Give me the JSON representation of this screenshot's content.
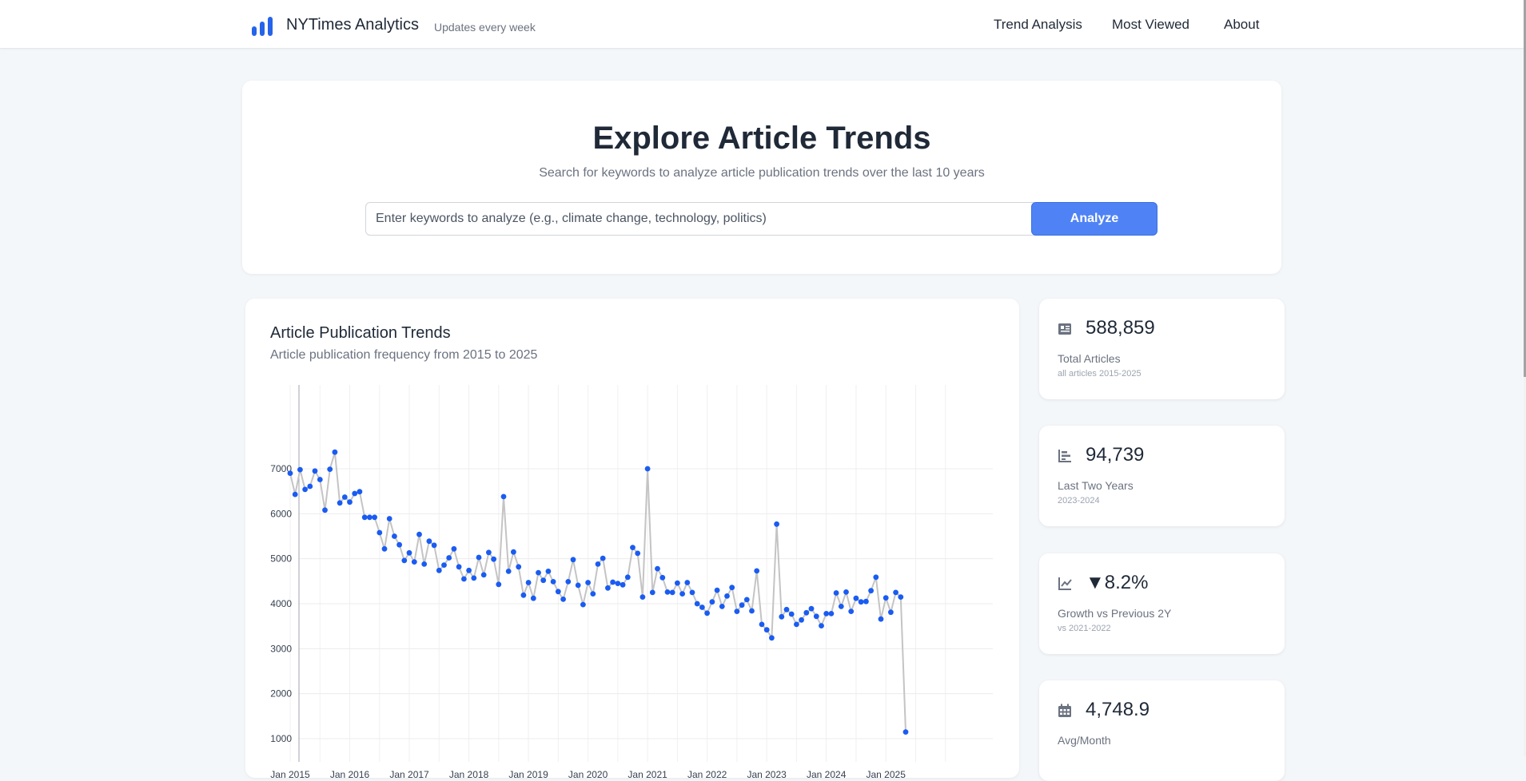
{
  "header": {
    "brand": "NYTimes Analytics",
    "tagline": "Updates every week",
    "nav": [
      "Trend Analysis",
      "Most Viewed",
      "About"
    ]
  },
  "hero": {
    "title": "Explore Article Trends",
    "subtitle": "Search for keywords to analyze article publication trends over the last 10 years",
    "search_placeholder": "Enter keywords to analyze (e.g., climate change, technology, politics)",
    "search_value": "",
    "button": "Analyze"
  },
  "chart_panel": {
    "title": "Article Publication Trends",
    "subtitle": "Article publication frequency from 2015 to 2025"
  },
  "stats": [
    {
      "icon": "newspaper-icon",
      "value": "588,859",
      "label": "Total Articles",
      "note": "all articles 2015-2025"
    },
    {
      "icon": "bar-chart-icon",
      "value": "94,739",
      "label": "Last Two Years",
      "note": "2023-2024"
    },
    {
      "icon": "line-chart-icon",
      "value": "▼8.2%",
      "label": "Growth vs Previous 2Y",
      "note": "vs 2021-2022"
    },
    {
      "icon": "calendar-icon",
      "value": "4,748.9",
      "label": "Avg/Month",
      "note": ""
    }
  ],
  "colors": {
    "accent": "#4f83f5",
    "point": "#1a5cf2",
    "line": "#c4c4c4",
    "brand_icon": "#2563eb"
  },
  "chart_data": {
    "type": "line",
    "title": "Article Publication Trends",
    "subtitle": "Article publication frequency from 2015 to 2025",
    "xlabel": "",
    "ylabel": "",
    "ylim": [
      800,
      7800
    ],
    "y_ticks": [
      1000,
      2000,
      3000,
      4000,
      5000,
      6000,
      7000
    ],
    "x_tick_labels": [
      "Jan 2015",
      "Jan 2016",
      "Jan 2017",
      "Jan 2018",
      "Jan 2019",
      "Jan 2020",
      "Jan 2021",
      "Jan 2022",
      "Jan 2023",
      "Jan 2024",
      "Jan 2025"
    ],
    "x_start": "2015-01",
    "grid": true,
    "legend": "none",
    "series": [
      {
        "values": [
          6900,
          6430,
          6980,
          6540,
          6610,
          6950,
          6760,
          6080,
          6990,
          7370,
          6240,
          6370,
          6260,
          6450,
          6490,
          5920,
          5920,
          5920,
          5580,
          5220,
          5890,
          5500,
          5310,
          4960,
          5130,
          4930,
          5540,
          4880,
          5390,
          5300,
          4740,
          4860,
          5020,
          5220,
          4820,
          4550,
          4740,
          4570,
          5030,
          4640,
          5140,
          4990,
          4430,
          6380,
          4720,
          5150,
          4820,
          4190,
          4470,
          4120,
          4690,
          4520,
          4720,
          4490,
          4270,
          4100,
          4490,
          4980,
          4410,
          3980,
          4470,
          4220,
          4880,
          5010,
          4350,
          4480,
          4450,
          4420,
          4590,
          5250,
          5120,
          4150,
          7000,
          4250,
          4780,
          4580,
          4260,
          4250,
          4460,
          4220,
          4470,
          4250,
          4000,
          3920,
          3790,
          4040,
          4300,
          3940,
          4170,
          4360,
          3830,
          3970,
          4090,
          3840,
          4730,
          3540,
          3420,
          3240,
          5770,
          3710,
          3870,
          3770,
          3540,
          3640,
          3800,
          3890,
          3720,
          3510,
          3780,
          3780,
          4240,
          3940,
          4260,
          3830,
          4120,
          4040,
          4050,
          4290,
          4590,
          3660,
          4130,
          3810,
          4250,
          4150,
          1150
        ]
      }
    ]
  }
}
